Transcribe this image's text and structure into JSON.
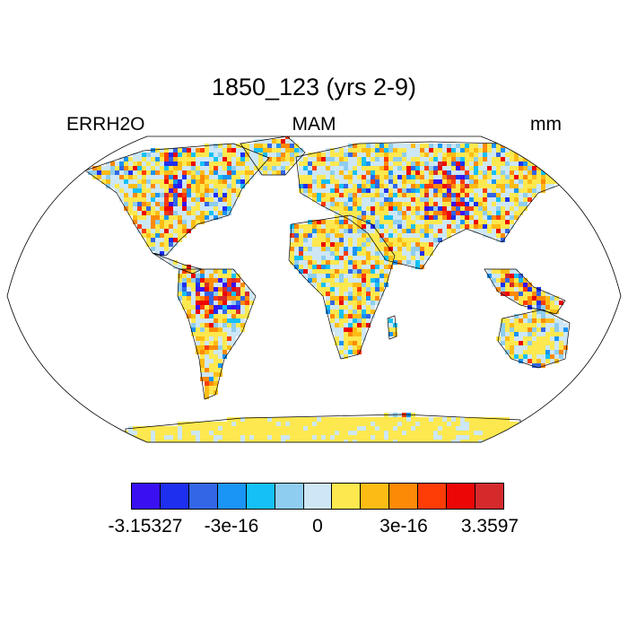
{
  "title": "1850_123 (yrs 2-9)",
  "subtitle": {
    "left": "ERRH2O",
    "center": "MAM",
    "right": "mm"
  },
  "colorbar": {
    "colors": [
      "#3a10f2",
      "#1e2ff0",
      "#3366e6",
      "#1a94f5",
      "#14c0f6",
      "#8ecdef",
      "#cde7f6",
      "#fde84f",
      "#fdbc14",
      "#fd8a07",
      "#fd3c06",
      "#ec0605",
      "#d52a2c"
    ],
    "labels": [
      "-3.15327",
      "-3e-16",
      "0",
      "3e-16",
      "3.3597"
    ],
    "label_positions": [
      0,
      3,
      6,
      9,
      12
    ]
  },
  "map": {
    "projection": "Robinson",
    "coastline_color": "#000000",
    "land_fill": "mixed noisy field"
  }
}
